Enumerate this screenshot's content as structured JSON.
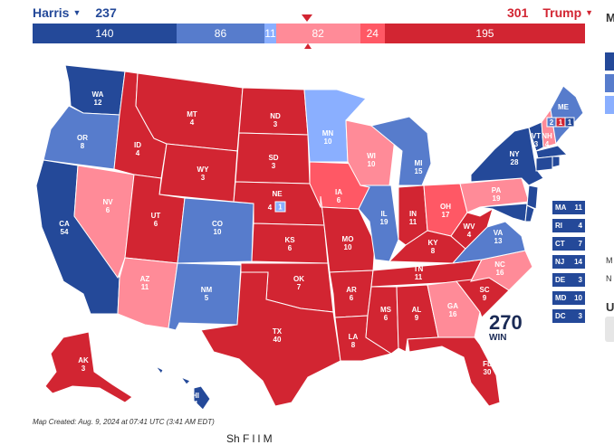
{
  "header": {
    "left_name": "Harris",
    "left_total": "237",
    "right_total": "301",
    "right_name": "Trump"
  },
  "bar": [
    {
      "label": "140",
      "value": 140,
      "color": "#244999"
    },
    {
      "label": "86",
      "value": 86,
      "color": "#577ccc"
    },
    {
      "label": "11",
      "value": 11,
      "color": "#8aafff"
    },
    {
      "label": "82",
      "value": 82,
      "color": "#ff8b98"
    },
    {
      "label": "24",
      "value": 24,
      "color": "#ff5865"
    },
    {
      "label": "195",
      "value": 195,
      "color": "#d22532"
    }
  ],
  "states": [
    {
      "abbr": "WA",
      "ev": "12"
    },
    {
      "abbr": "OR",
      "ev": "8"
    },
    {
      "abbr": "CA",
      "ev": "54"
    },
    {
      "abbr": "NV",
      "ev": "6"
    },
    {
      "abbr": "ID",
      "ev": "4"
    },
    {
      "abbr": "MT",
      "ev": "4"
    },
    {
      "abbr": "WY",
      "ev": "3"
    },
    {
      "abbr": "UT",
      "ev": "6"
    },
    {
      "abbr": "AZ",
      "ev": "11"
    },
    {
      "abbr": "CO",
      "ev": "10"
    },
    {
      "abbr": "NM",
      "ev": "5"
    },
    {
      "abbr": "ND",
      "ev": "3"
    },
    {
      "abbr": "SD",
      "ev": "3"
    },
    {
      "abbr": "NE",
      "ev": "4"
    },
    {
      "abbr": "KS",
      "ev": "6"
    },
    {
      "abbr": "OK",
      "ev": "7"
    },
    {
      "abbr": "TX",
      "ev": "40"
    },
    {
      "abbr": "MN",
      "ev": "10"
    },
    {
      "abbr": "IA",
      "ev": "6"
    },
    {
      "abbr": "MO",
      "ev": "10"
    },
    {
      "abbr": "AR",
      "ev": "6"
    },
    {
      "abbr": "LA",
      "ev": "8"
    },
    {
      "abbr": "WI",
      "ev": "10"
    },
    {
      "abbr": "IL",
      "ev": "19"
    },
    {
      "abbr": "MI",
      "ev": "15"
    },
    {
      "abbr": "IN",
      "ev": "11"
    },
    {
      "abbr": "OH",
      "ev": "17"
    },
    {
      "abbr": "KY",
      "ev": "8"
    },
    {
      "abbr": "TN",
      "ev": "11"
    },
    {
      "abbr": "MS",
      "ev": "6"
    },
    {
      "abbr": "AL",
      "ev": "9"
    },
    {
      "abbr": "GA",
      "ev": "16"
    },
    {
      "abbr": "FL",
      "ev": "30"
    },
    {
      "abbr": "SC",
      "ev": "9"
    },
    {
      "abbr": "NC",
      "ev": "16"
    },
    {
      "abbr": "VA",
      "ev": "13"
    },
    {
      "abbr": "WV",
      "ev": "4"
    },
    {
      "abbr": "PA",
      "ev": "19"
    },
    {
      "abbr": "NY",
      "ev": "28"
    },
    {
      "abbr": "VT",
      "ev": "3"
    },
    {
      "abbr": "NH",
      "ev": "4"
    },
    {
      "abbr": "ME",
      "ev": "2"
    },
    {
      "abbr": "AK",
      "ev": "3"
    },
    {
      "abbr": "HI",
      "ev": "4"
    }
  ],
  "ne_split": "1",
  "me_split_a": "2",
  "me_split_b": "1",
  "me_split_c": "1",
  "small_states": [
    {
      "abbr": "MA",
      "ev": "11",
      "color": "#244999"
    },
    {
      "abbr": "RI",
      "ev": "4",
      "color": "#244999"
    },
    {
      "abbr": "CT",
      "ev": "7",
      "color": "#244999"
    },
    {
      "abbr": "NJ",
      "ev": "14",
      "color": "#244999"
    },
    {
      "abbr": "DE",
      "ev": "3",
      "color": "#244999"
    },
    {
      "abbr": "MD",
      "ev": "10",
      "color": "#244999"
    },
    {
      "abbr": "DC",
      "ev": "3",
      "color": "#244999"
    }
  ],
  "logo": {
    "top": "270",
    "bottom": "WIN"
  },
  "credit": "Map Created: Aug. 9, 2024 at 07:41 UTC (3:41 AM EDT)",
  "bottom_cut": "Sh     F  l   l    M",
  "edge_letters": [
    "M",
    "N",
    "U"
  ]
}
